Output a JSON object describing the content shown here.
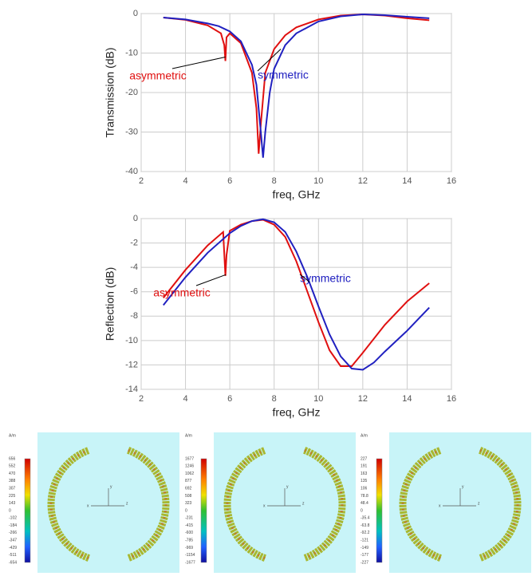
{
  "chart_data": [
    {
      "type": "line",
      "ylabel": "Transmission (dB)",
      "xlabel": "freq, GHz",
      "xlim": [
        2,
        16
      ],
      "xticks": [
        2,
        4,
        6,
        8,
        10,
        12,
        14,
        16
      ],
      "ylim": [
        -40,
        0
      ],
      "yticks": [
        0,
        -10,
        -20,
        -30,
        -40
      ],
      "grid": true,
      "series": [
        {
          "name": "asymmetric",
          "color": "#e01010",
          "x": [
            3,
            4,
            5,
            5.6,
            5.75,
            5.8,
            5.85,
            6,
            6.5,
            7,
            7.2,
            7.3,
            7.4,
            7.6,
            8,
            8.5,
            9,
            10,
            11,
            12,
            13,
            14,
            15
          ],
          "values": [
            -1,
            -1.6,
            -3,
            -5,
            -8,
            -12,
            -6,
            -5,
            -7.5,
            -15,
            -24,
            -35.5,
            -28,
            -15,
            -9,
            -5.5,
            -3.5,
            -1.5,
            -0.5,
            -0.2,
            -0.5,
            -1.2,
            -1.7
          ]
        },
        {
          "name": "symmetric",
          "color": "#2020c0",
          "x": [
            3,
            4,
            5,
            5.5,
            6,
            6.5,
            7,
            7.2,
            7.4,
            7.5,
            7.6,
            7.8,
            8,
            8.5,
            9,
            10,
            11,
            12,
            13,
            14,
            15
          ],
          "values": [
            -1,
            -1.5,
            -2.5,
            -3.2,
            -4.5,
            -7,
            -13,
            -18,
            -30,
            -36.5,
            -30,
            -20,
            -14,
            -8,
            -5,
            -2,
            -0.7,
            -0.2,
            -0.4,
            -0.8,
            -1.2
          ]
        }
      ]
    },
    {
      "type": "line",
      "ylabel": "Reflection (dB)",
      "xlabel": "freq, GHz",
      "xlim": [
        2,
        16
      ],
      "xticks": [
        2,
        4,
        6,
        8,
        10,
        12,
        14,
        16
      ],
      "ylim": [
        -14,
        0
      ],
      "yticks": [
        0,
        -2,
        -4,
        -6,
        -8,
        -10,
        -12,
        -14
      ],
      "grid": true,
      "series": [
        {
          "name": "asymmetric",
          "color": "#e01010",
          "x": [
            3,
            4,
            5,
            5.7,
            5.8,
            5.85,
            6,
            6.5,
            7,
            7.5,
            8,
            8.5,
            9,
            9.5,
            10,
            10.5,
            11,
            11.5,
            12,
            13,
            14,
            15
          ],
          "values": [
            -6.5,
            -4.2,
            -2.2,
            -1.1,
            -4.7,
            -3,
            -1,
            -0.5,
            -0.2,
            -0.1,
            -0.5,
            -1.5,
            -3.5,
            -6,
            -8.5,
            -10.8,
            -12.1,
            -12.1,
            -11,
            -8.7,
            -6.8,
            -5.3
          ]
        },
        {
          "name": "symmetric",
          "color": "#2020c0",
          "x": [
            3,
            4,
            5,
            6,
            6.5,
            7,
            7.5,
            8,
            8.5,
            9,
            9.5,
            10,
            10.5,
            11,
            11.5,
            12,
            12.5,
            13,
            14,
            15
          ],
          "values": [
            -7.1,
            -4.8,
            -2.8,
            -1.2,
            -0.6,
            -0.2,
            -0.05,
            -0.3,
            -1.1,
            -2.7,
            -4.8,
            -7.2,
            -9.5,
            -11.3,
            -12.3,
            -12.4,
            -11.8,
            -10.9,
            -9.2,
            -7.3
          ]
        }
      ]
    }
  ],
  "field_plots": [
    {
      "unit": "A/m",
      "colorbar_labels": [
        "656",
        "552",
        "470",
        "388",
        "307",
        "225",
        "143",
        "0",
        "-102",
        "-184",
        "-266",
        "-347",
        "-429",
        "-511",
        "-654"
      ],
      "axes": [
        "x",
        "y",
        "z"
      ]
    },
    {
      "unit": "A/m",
      "colorbar_labels": [
        "1677",
        "1246",
        "1062",
        "877",
        "692",
        "508",
        "323",
        "0",
        "-231",
        "-415",
        "-600",
        "-785",
        "-969",
        "-1154",
        "-1677"
      ],
      "axes": [
        "x",
        "y",
        "z"
      ]
    },
    {
      "unit": "A/m",
      "colorbar_labels": [
        "227",
        "191",
        "163",
        "135",
        "106",
        "78.8",
        "48.4",
        "0",
        "-35.4",
        "-63.8",
        "-92.2",
        "-121",
        "-149",
        "-177",
        "-227"
      ],
      "axes": [
        "x",
        "y",
        "z"
      ]
    }
  ]
}
